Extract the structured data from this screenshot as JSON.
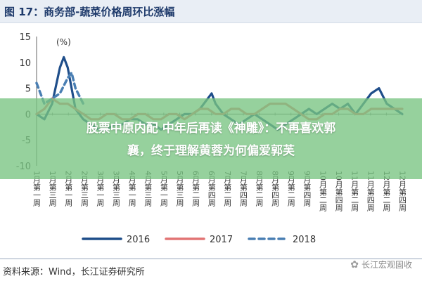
{
  "header": {
    "title": "图 17：商务部-蔬菜价格周环比涨幅"
  },
  "banner": {
    "line1": "股票中原内配 中年后再读《神雕》：不再喜欢郭",
    "line2": "襄，终于理解黄蓉为何偏爱郭芙"
  },
  "footer": {
    "source": "资料来源：Wind，长江证券研究所"
  },
  "watermark": {
    "text": "长江宏观固收",
    "icon": "wechat-icon"
  },
  "chart_data": {
    "type": "line",
    "title": "",
    "ylabel": "(%)",
    "xlabel": "",
    "ylim": [
      -10,
      15
    ],
    "yticks": [
      "15",
      "10",
      "5",
      "0",
      "-5",
      "-10"
    ],
    "grid": false,
    "legend_position": "bottom",
    "categories": [
      "1月第一周",
      "1月第三周",
      "2月第一周",
      "2月第三周",
      "3月第一周",
      "3月第三周",
      "4月第一周",
      "4月第三周",
      "5月第一周",
      "5月第三周",
      "6月第二周",
      "6月第四周",
      "7月第二周",
      "7月第四周",
      "8月第二周",
      "8月第四周",
      "9月第二周",
      "9月第四周",
      "10月第二周",
      "10月第四周",
      "11月第二周",
      "11月第四周",
      "12月第二周",
      "12月第四周"
    ],
    "series": [
      {
        "name": "2016",
        "color": "#1f4e8a",
        "style": "solid",
        "x": [
          0,
          1,
          2,
          3,
          3.5,
          4,
          5,
          6,
          7,
          8,
          9,
          10,
          11,
          12,
          13,
          14,
          15,
          16,
          17,
          18,
          19,
          20,
          21,
          22,
          22.5,
          23,
          24,
          25,
          26,
          27,
          28,
          29,
          30,
          31,
          32,
          33,
          34,
          35,
          36,
          37,
          38,
          39,
          40,
          41,
          42,
          43,
          44,
          45,
          46,
          47
        ],
        "values": [
          0,
          -1,
          2,
          9,
          11,
          9,
          1,
          -1,
          -2,
          -3,
          -3,
          -2,
          -2,
          -1,
          -1,
          -2,
          -2,
          -3,
          -2,
          -1,
          0,
          0,
          1,
          3,
          4,
          2,
          0,
          -1,
          -2,
          -1,
          0,
          -1,
          -2,
          -3,
          -2,
          -1,
          0,
          1,
          0,
          1,
          2,
          1,
          2,
          0,
          2,
          4,
          5,
          2,
          1,
          0
        ]
      },
      {
        "name": "2017",
        "color": "#e27575",
        "style": "solid",
        "x": [
          0,
          1,
          2,
          3,
          4,
          5,
          6,
          7,
          8,
          9,
          10,
          11,
          12,
          13,
          14,
          15,
          16,
          17,
          18,
          19,
          20,
          21,
          22,
          23,
          24,
          25,
          26,
          27,
          28,
          29,
          30,
          31,
          32,
          33,
          34,
          35,
          36,
          37,
          38,
          39,
          40,
          41,
          42,
          43,
          44,
          45,
          46,
          47
        ],
        "values": [
          0,
          1,
          3,
          2,
          2,
          1,
          0,
          -1,
          -1,
          0,
          0,
          -1,
          -1,
          0,
          0,
          -1,
          -1,
          0,
          0,
          -1,
          0,
          1,
          1,
          0,
          0,
          1,
          1,
          0,
          0,
          1,
          2,
          2,
          2,
          1,
          0,
          -1,
          -1,
          0,
          0,
          1,
          1,
          0,
          0,
          1,
          1,
          1,
          1,
          1
        ]
      },
      {
        "name": "2018",
        "color": "#4a7fb3",
        "style": "dashed",
        "x": [
          0,
          1,
          2,
          3,
          4,
          4.5,
          5,
          6
        ],
        "values": [
          6,
          2,
          3,
          4,
          7,
          8,
          5,
          2
        ]
      }
    ]
  }
}
